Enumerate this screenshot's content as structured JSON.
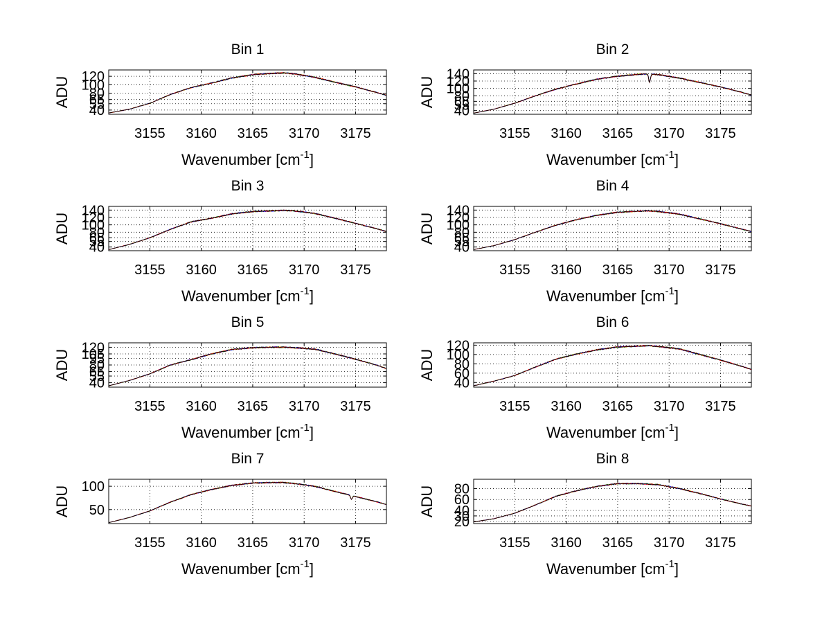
{
  "figure": {
    "panel_count": 8,
    "layout": "4 rows x 2 columns",
    "grid": true,
    "grid_style": "dotted",
    "series_colors": [
      "#ffd400",
      "#00a000",
      "#0000ff",
      "#ff0000",
      "#000000"
    ]
  },
  "chart_data": [
    {
      "type": "line",
      "title": "Bin 1",
      "xlabel": "Wavenumber [cm",
      "xlabel_sup": "-1",
      "xlabel_close": "]",
      "ylabel": "ADU",
      "xlim": [
        3151,
        3178
      ],
      "ylim": [
        30,
        135
      ],
      "xticks": [
        3155,
        3160,
        3165,
        3170,
        3175
      ],
      "xtick_labels": [
        "3155",
        "3160",
        "3165",
        "3170",
        "3175"
      ],
      "yticks": [
        40,
        55,
        65,
        80,
        100,
        120
      ],
      "ytick_labels": [
        "40",
        "55",
        "65",
        "80",
        "100",
        "120"
      ],
      "x": [
        3151,
        3153,
        3155,
        3157,
        3159,
        3161,
        3163,
        3165,
        3167,
        3168,
        3169,
        3171,
        3173,
        3175,
        3177,
        3178
      ],
      "y": [
        33,
        42,
        56,
        77,
        93,
        104,
        116,
        124,
        127,
        128,
        126,
        118,
        106,
        95,
        82,
        75
      ],
      "dips": []
    },
    {
      "type": "line",
      "title": "Bin 2",
      "xlabel": "Wavenumber [cm",
      "xlabel_sup": "-1",
      "xlabel_close": "]",
      "ylabel": "ADU",
      "xlim": [
        3151,
        3178
      ],
      "ylim": [
        30,
        150
      ],
      "xticks": [
        3155,
        3160,
        3165,
        3170,
        3175
      ],
      "xtick_labels": [
        "3155",
        "3160",
        "3165",
        "3170",
        "3175"
      ],
      "yticks": [
        40,
        55,
        65,
        80,
        100,
        120,
        140
      ],
      "ytick_labels": [
        "40",
        "55",
        "65",
        "80",
        "100",
        "120",
        "140"
      ],
      "x": [
        3151,
        3153,
        3155,
        3157,
        3159,
        3161,
        3163,
        3165,
        3167,
        3168,
        3169,
        3171,
        3173,
        3175,
        3177,
        3178
      ],
      "y": [
        33,
        44,
        60,
        80,
        98,
        112,
        125,
        133,
        138,
        139,
        137,
        128,
        116,
        104,
        90,
        82
      ],
      "dips": [
        {
          "x": 3168.1,
          "y": 117
        }
      ]
    },
    {
      "type": "line",
      "title": "Bin 3",
      "xlabel": "Wavenumber [cm",
      "xlabel_sup": "-1",
      "xlabel_close": "]",
      "ylabel": "ADU",
      "xlim": [
        3151,
        3178
      ],
      "ylim": [
        30,
        150
      ],
      "xticks": [
        3155,
        3160,
        3165,
        3170,
        3175
      ],
      "xtick_labels": [
        "3155",
        "3160",
        "3165",
        "3170",
        "3175"
      ],
      "yticks": [
        40,
        55,
        65,
        80,
        100,
        120,
        140
      ],
      "ytick_labels": [
        "40",
        "55",
        "65",
        "80",
        "100",
        "120",
        "140"
      ],
      "x": [
        3151,
        3153,
        3155,
        3157,
        3159,
        3161,
        3163,
        3165,
        3167,
        3168,
        3169,
        3171,
        3173,
        3175,
        3177,
        3178
      ],
      "y": [
        33,
        47,
        65,
        88,
        108,
        118,
        130,
        136,
        138,
        139,
        138,
        131,
        118,
        104,
        90,
        82
      ],
      "dips": []
    },
    {
      "type": "line",
      "title": "Bin 4",
      "xlabel": "Wavenumber [cm",
      "xlabel_sup": "-1",
      "xlabel_close": "]",
      "ylabel": "ADU",
      "xlim": [
        3151,
        3178
      ],
      "ylim": [
        30,
        150
      ],
      "xticks": [
        3155,
        3160,
        3165,
        3170,
        3175
      ],
      "xtick_labels": [
        "3155",
        "3160",
        "3165",
        "3170",
        "3175"
      ],
      "yticks": [
        40,
        55,
        65,
        80,
        100,
        120,
        140
      ],
      "ytick_labels": [
        "40",
        "55",
        "65",
        "80",
        "100",
        "120",
        "140"
      ],
      "x": [
        3151,
        3153,
        3155,
        3157,
        3159,
        3161,
        3163,
        3165,
        3167,
        3168,
        3169,
        3171,
        3173,
        3175,
        3177,
        3178
      ],
      "y": [
        33,
        44,
        60,
        80,
        99,
        114,
        126,
        134,
        137,
        138,
        136,
        129,
        116,
        103,
        89,
        82
      ],
      "dips": []
    },
    {
      "type": "line",
      "title": "Bin 5",
      "xlabel": "Wavenumber [cm",
      "xlabel_sup": "-1",
      "xlabel_close": "]",
      "ylabel": "ADU",
      "xlim": [
        3151,
        3178
      ],
      "ylim": [
        30,
        130
      ],
      "xticks": [
        3155,
        3160,
        3165,
        3170,
        3175
      ],
      "xtick_labels": [
        "3155",
        "3160",
        "3165",
        "3170",
        "3175"
      ],
      "yticks": [
        40,
        55,
        65,
        80,
        95,
        105,
        120
      ],
      "ytick_labels": [
        "40",
        "55",
        "65",
        "80",
        "95",
        "105",
        "120"
      ],
      "x": [
        3151,
        3153,
        3155,
        3157,
        3159,
        3161,
        3163,
        3165,
        3167,
        3168,
        3169,
        3171,
        3173,
        3175,
        3177,
        3178
      ],
      "y": [
        33,
        45,
        60,
        80,
        92,
        105,
        115,
        119,
        120,
        120,
        119,
        116,
        105,
        93,
        80,
        72
      ],
      "dips": []
    },
    {
      "type": "line",
      "title": "Bin 6",
      "xlabel": "Wavenumber [cm",
      "xlabel_sup": "-1",
      "xlabel_close": "]",
      "ylabel": "ADU",
      "xlim": [
        3151,
        3178
      ],
      "ylim": [
        30,
        125
      ],
      "xticks": [
        3155,
        3160,
        3165,
        3170,
        3175
      ],
      "xtick_labels": [
        "3155",
        "3160",
        "3165",
        "3170",
        "3175"
      ],
      "yticks": [
        40,
        60,
        80,
        100,
        120
      ],
      "ytick_labels": [
        "40",
        "60",
        "80",
        "100",
        "120"
      ],
      "x": [
        3151,
        3153,
        3155,
        3157,
        3159,
        3161,
        3163,
        3165,
        3167,
        3168,
        3169,
        3171,
        3173,
        3175,
        3177,
        3178
      ],
      "y": [
        33,
        43,
        55,
        73,
        90,
        101,
        110,
        116,
        118,
        119,
        117,
        112,
        100,
        88,
        75,
        68
      ],
      "dips": []
    },
    {
      "type": "line",
      "title": "Bin 7",
      "xlabel": "Wavenumber [cm",
      "xlabel_sup": "-1",
      "xlabel_close": "]",
      "ylabel": "ADU",
      "xlim": [
        3151,
        3178
      ],
      "ylim": [
        20,
        115
      ],
      "xticks": [
        3155,
        3160,
        3165,
        3170,
        3175
      ],
      "xtick_labels": [
        "3155",
        "3160",
        "3165",
        "3170",
        "3175"
      ],
      "yticks": [
        50,
        100
      ],
      "ytick_labels": [
        "50",
        "100"
      ],
      "x": [
        3151,
        3153,
        3155,
        3157,
        3159,
        3161,
        3163,
        3165,
        3167,
        3168,
        3169,
        3171,
        3173,
        3175,
        3177,
        3178
      ],
      "y": [
        22,
        33,
        47,
        66,
        82,
        93,
        102,
        107,
        108,
        108,
        106,
        100,
        89,
        78,
        67,
        61
      ],
      "dips": [
        {
          "x": 3174.6,
          "y": 72
        }
      ]
    },
    {
      "type": "line",
      "title": "Bin 8",
      "xlabel": "Wavenumber [cm",
      "xlabel_sup": "-1",
      "xlabel_close": "]",
      "ylabel": "ADU",
      "xlim": [
        3151,
        3178
      ],
      "ylim": [
        16,
        97
      ],
      "xticks": [
        3155,
        3160,
        3165,
        3170,
        3175
      ],
      "xtick_labels": [
        "3155",
        "3160",
        "3165",
        "3170",
        "3175"
      ],
      "yticks": [
        20,
        30,
        40,
        60,
        80
      ],
      "ytick_labels": [
        "20",
        "30",
        "40",
        "60",
        "80"
      ],
      "x": [
        3151,
        3153,
        3155,
        3157,
        3159,
        3161,
        3163,
        3165,
        3167,
        3168,
        3169,
        3171,
        3173,
        3175,
        3177,
        3178
      ],
      "y": [
        19,
        25,
        35,
        50,
        66,
        76,
        84,
        89,
        89,
        88,
        87,
        80,
        71,
        61,
        52,
        48
      ],
      "dips": []
    }
  ]
}
